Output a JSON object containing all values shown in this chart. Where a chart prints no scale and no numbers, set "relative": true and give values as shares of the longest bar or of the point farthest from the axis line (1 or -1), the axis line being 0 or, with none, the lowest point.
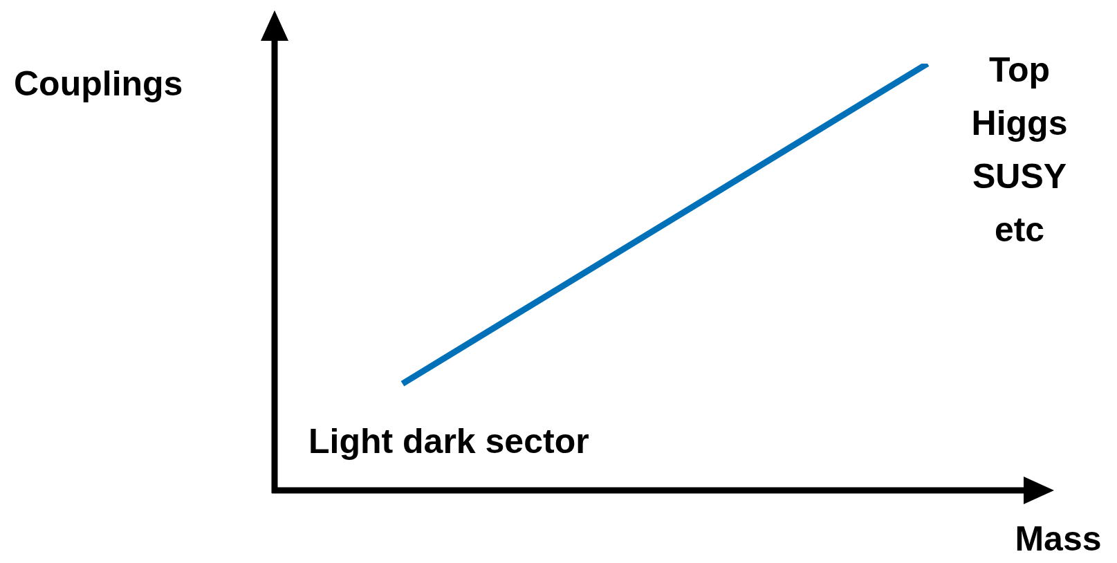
{
  "chart_data": {
    "type": "line",
    "relative": true,
    "xlabel": "Mass",
    "ylabel": "Couplings",
    "categories": [
      null,
      null
    ],
    "legend": false,
    "marker": "none",
    "line_style": "solid",
    "series": [
      {
        "color": "#0070b8",
        "values": [
          0.25,
          1
        ]
      }
    ],
    "annotations": [
      "Light dark sector",
      "Top\nHiggs\nSUSY\netc"
    ]
  }
}
